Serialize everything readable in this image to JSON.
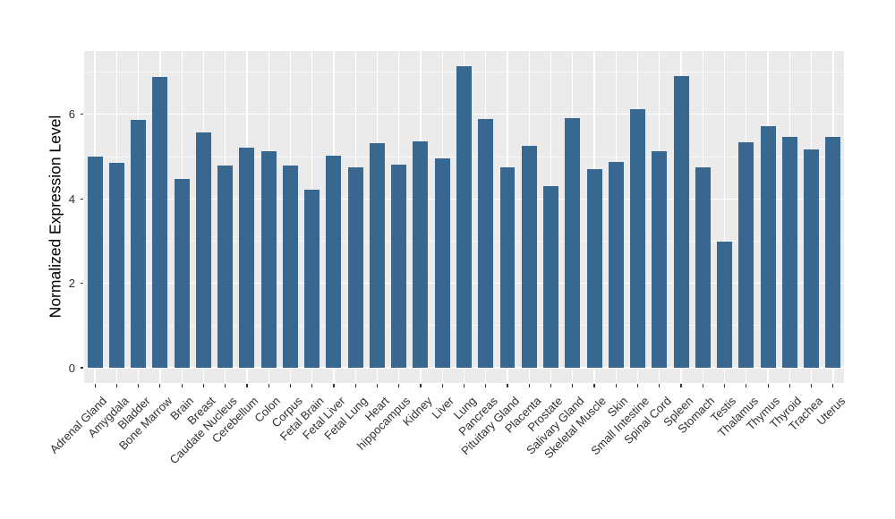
{
  "chart_data": {
    "type": "bar",
    "title": "",
    "ylabel": "Normalized Expression Level",
    "xlabel": "",
    "categories": [
      "Adrenal Gland",
      "Amygdala",
      "Bladder",
      "Bone Marrow",
      "Brain",
      "Breast",
      "Caudate Nucleus",
      "Cerebellum",
      "Colon",
      "Corpus",
      "Fetal Brain",
      "Fetal Liver",
      "Fetal Lung",
      "Heart",
      "hippocampus",
      "Kidney",
      "Liver",
      "Lung",
      "Pancreas",
      "Pituitary Gland",
      "Placenta",
      "Prostate",
      "Salivary Gland",
      "Skeletal Muscle",
      "Skin",
      "Small Intestine",
      "Spinal Cord",
      "Spleen",
      "Stomach",
      "Testis",
      "Thalamus",
      "Thymus",
      "Thyroid",
      "Trachea",
      "Uterus"
    ],
    "values": [
      5.0,
      4.86,
      5.86,
      6.89,
      4.46,
      5.58,
      4.79,
      5.21,
      5.13,
      4.78,
      4.22,
      5.03,
      4.74,
      5.32,
      4.8,
      5.36,
      4.95,
      7.14,
      5.9,
      4.75,
      5.26,
      4.31,
      5.92,
      4.7,
      4.87,
      6.12,
      5.13,
      6.91,
      4.75,
      2.98,
      5.33,
      5.73,
      5.47,
      5.16,
      5.46
    ],
    "yticks_major": [
      0,
      2,
      4,
      6
    ],
    "yticks_minor": [
      1,
      3,
      5,
      7
    ],
    "ylim": [
      0,
      7.5
    ],
    "grid": "on",
    "legend": "none",
    "colors": {
      "bar_fill": "#38678F",
      "panel_background": "#EBEBEB",
      "gridline": "#FFFFFF",
      "tick_mark": "#333333",
      "tick_label": "#303030",
      "axis_title": "#000000",
      "figure_background": "#FFFFFF"
    }
  }
}
